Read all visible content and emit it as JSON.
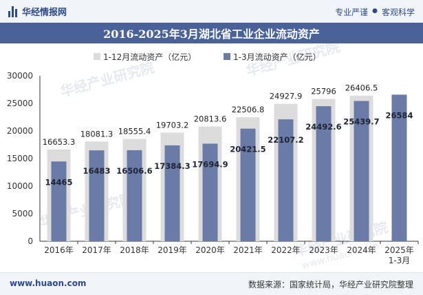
{
  "header": {
    "brand": "华经情报网",
    "slogan_left": "专业严谨",
    "slogan_right": "客观科学"
  },
  "title": "2016-2025年3月湖北省工业企业流动资产",
  "footer": {
    "url": "www.huaon.com",
    "source": "数据来源：国家统计局，华经产业研究院整理"
  },
  "watermark": {
    "cn": "华经产业研究院",
    "url": "www.huaon.com"
  },
  "colors": {
    "series_1_12": "#dcdcdc",
    "series_1_3": "#6a7ba7",
    "title_bg": "#4a6298",
    "brand": "#2d4a86"
  },
  "chart_data": {
    "type": "bar",
    "categories": [
      "2016年",
      "2017年",
      "2018年",
      "2019年",
      "2020年",
      "2021年",
      "2022年",
      "2023年",
      "2024年",
      "2025年\n1-3月"
    ],
    "series": [
      {
        "name": "1-12月流动资产（亿元）",
        "values": [
          16653.3,
          18081.3,
          18555.4,
          19703.2,
          20813.6,
          22506.8,
          24927.9,
          25796,
          26406.5,
          null
        ]
      },
      {
        "name": "1-3月流动资产（亿元）",
        "values": [
          14465,
          16483,
          16506.6,
          17384.3,
          17694.9,
          20421.5,
          22107.2,
          24492.6,
          25439.7,
          26584
        ]
      }
    ],
    "labels_1_12": [
      "16653.3",
      "18081.3",
      "18555.4",
      "19703.2",
      "20813.6",
      "22506.8",
      "24927.9",
      "25796",
      "26406.5",
      ""
    ],
    "labels_1_3": [
      "14465",
      "16483",
      "16506.6",
      "17384.3",
      "17694.9",
      "20421.5",
      "22107.2",
      "24492.6",
      "25439.7",
      "26584"
    ],
    "ylim": [
      0,
      30000
    ],
    "yticks": [
      "0",
      "5000",
      "10000",
      "15000",
      "20000",
      "25000",
      "30000"
    ],
    "legend_position": "top-center",
    "grid": false
  }
}
